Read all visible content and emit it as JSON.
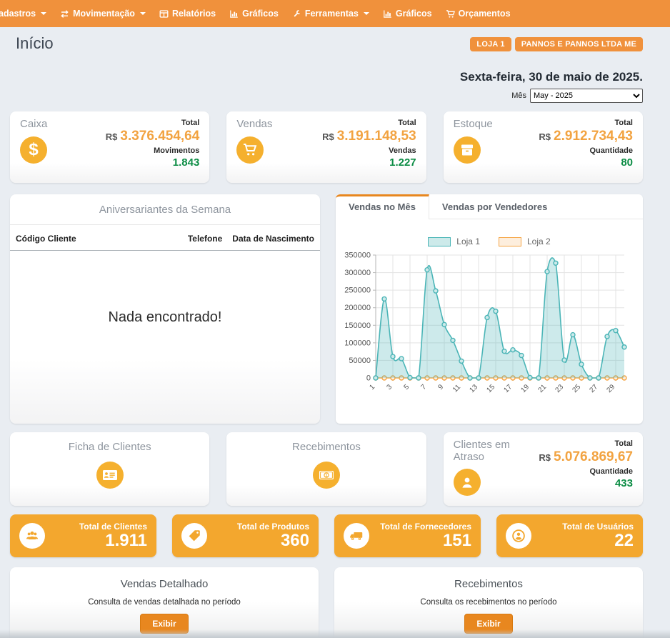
{
  "nav": {
    "items": [
      {
        "label": "adastros",
        "icon": "none",
        "caret": true
      },
      {
        "label": "Movimentação",
        "icon": "swap-arrows",
        "caret": true
      },
      {
        "label": "Relatórios",
        "icon": "table",
        "caret": false
      },
      {
        "label": "Gráficos",
        "icon": "bar-chart",
        "caret": false
      },
      {
        "label": "Ferramentas",
        "icon": "wrench",
        "caret": true
      },
      {
        "label": "Gráficos",
        "icon": "bar-chart",
        "caret": false
      },
      {
        "label": "Orçamentos",
        "icon": "cart",
        "caret": false
      }
    ]
  },
  "header": {
    "title": "Início",
    "badges": [
      "LOJA 1",
      "PANNOS E PANNOS LTDA ME"
    ],
    "date": "Sexta-feira, 30 de maio de 2025.",
    "month_label": "Mês",
    "month_value": "May - 2025"
  },
  "summary_cards": [
    {
      "title": "Caixa",
      "icon": "dollar-icon",
      "total_label": "Total",
      "currency": "R$",
      "total": "3.376.454,64",
      "count_label": "Movimentos",
      "count": "1.843"
    },
    {
      "title": "Vendas",
      "icon": "cart-icon",
      "total_label": "Total",
      "currency": "R$",
      "total": "3.191.148,53",
      "count_label": "Vendas",
      "count": "1.227"
    },
    {
      "title": "Estoque",
      "icon": "box-icon",
      "total_label": "Total",
      "currency": "R$",
      "total": "2.912.734,43",
      "count_label": "Quantidade",
      "count": "80"
    }
  ],
  "birthdays": {
    "title": "Aniversariantes da Semana",
    "columns": [
      "Código Cliente",
      "Telefone",
      "Data de Nascimento"
    ],
    "empty_message": "Nada encontrado!"
  },
  "sales_panel": {
    "tabs": [
      "Vendas no Mês",
      "Vendas por Vendedores"
    ],
    "active_tab": 0
  },
  "chart_data": {
    "type": "area",
    "title": "",
    "xlabel": "",
    "ylabel": "",
    "x": [
      1,
      2,
      3,
      4,
      5,
      6,
      7,
      8,
      9,
      10,
      11,
      12,
      13,
      14,
      15,
      16,
      17,
      18,
      19,
      20,
      21,
      22,
      23,
      24,
      25,
      26,
      27,
      28,
      29,
      30
    ],
    "series": [
      {
        "name": "Loja 1",
        "color": "#4bb5b7",
        "fill": "rgba(75,181,183,0.28)",
        "marker_fill": "#cdeaea",
        "values": [
          0,
          225000,
          61000,
          55000,
          1000,
          0,
          308000,
          248000,
          152000,
          107000,
          48000,
          0,
          0,
          172000,
          190000,
          76000,
          80000,
          64000,
          1000,
          0,
          303000,
          327000,
          51000,
          123000,
          39000,
          0,
          0,
          118000,
          135000,
          88000
        ]
      },
      {
        "name": "Loja 2",
        "color": "#f5a545",
        "fill": "rgba(245,165,69,0.25)",
        "marker_fill": "#fdeedd",
        "values": [
          0,
          0,
          0,
          0,
          0,
          0,
          0,
          0,
          0,
          0,
          0,
          0,
          0,
          0,
          0,
          0,
          0,
          0,
          0,
          0,
          0,
          0,
          0,
          0,
          0,
          0,
          0,
          0,
          0,
          0
        ]
      }
    ],
    "ylim": [
      0,
      350000
    ],
    "ytick_step": 50000,
    "xticks": [
      1,
      3,
      5,
      7,
      9,
      11,
      13,
      15,
      17,
      19,
      21,
      23,
      25,
      27,
      29
    ],
    "legend_position": "top",
    "grid": true
  },
  "feature_cards": [
    {
      "title": "Ficha de Clientes",
      "icon": "id-card-icon"
    },
    {
      "title": "Recebimentos",
      "icon": "banknote-icon"
    }
  ],
  "overdue_card": {
    "title": "Clientes em Atraso",
    "icon": "person-icon",
    "total_label": "Total",
    "currency": "R$",
    "total": "5.076.869,67",
    "count_label": "Quantidade",
    "count": "433"
  },
  "stat_tiles": [
    {
      "label": "Total de Clientes",
      "value": "1.911",
      "icon": "users-icon"
    },
    {
      "label": "Total de Produtos",
      "value": "360",
      "icon": "tag-icon"
    },
    {
      "label": "Total de Fornecedores",
      "value": "151",
      "icon": "truck-icon"
    },
    {
      "label": "Total de Usuários",
      "value": "22",
      "icon": "user-circle-icon"
    }
  ],
  "report_cards": [
    {
      "title": "Vendas Detalhado",
      "description": "Consulta de vendas detalhada no período",
      "button": "Exibir"
    },
    {
      "title": "Recebimentos",
      "description": "Consulta os recebimentos no período",
      "button": "Exibir"
    }
  ],
  "colors": {
    "nav_orange": "#f0913c",
    "accent_orange": "#e8871f",
    "amount_orange": "#f2a341",
    "icon_circle": "#f5b02e",
    "tile_orange": "#f3a72e",
    "positive_green": "#0b8c44",
    "series_teal": "#4bb5b7",
    "series_orange": "#f5a545",
    "page_bg": "#e9edf2"
  }
}
